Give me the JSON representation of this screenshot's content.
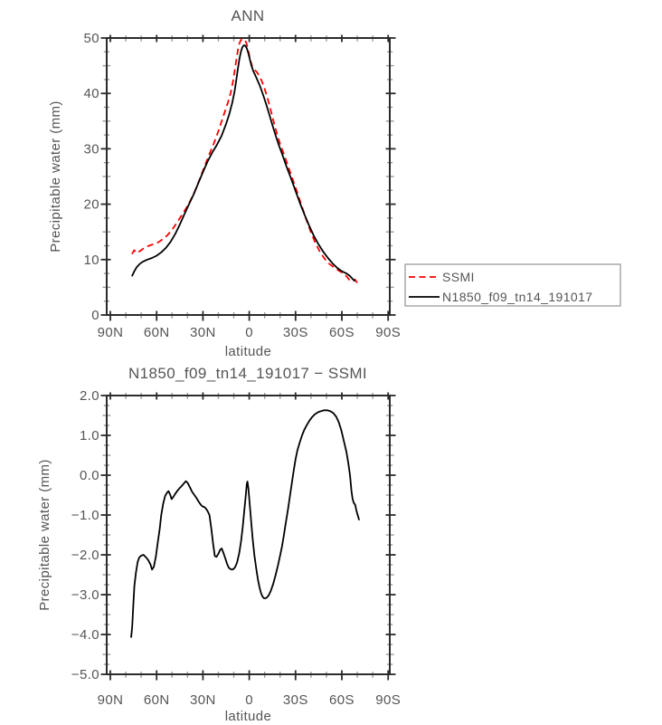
{
  "figure": {
    "background": "#ffffff",
    "text_color": "#555555",
    "axis_color": "#2b2b2b",
    "minor_tick_color": "#9b9b9b"
  },
  "chart_data": [
    {
      "type": "line",
      "title": "ANN",
      "xlabel": "latitude",
      "ylabel": "Precipitable water (mm)",
      "xlim": [
        90,
        -90
      ],
      "ylim": [
        0,
        50
      ],
      "grid": false,
      "x_tick_labels": [
        "90N",
        "60N",
        "30N",
        "0",
        "30S",
        "60S",
        "90S"
      ],
      "x_tick_lats": [
        90,
        60,
        30,
        0,
        -30,
        -60,
        -90
      ],
      "x_minor_step": 10,
      "y_tick_values": [
        0,
        10,
        20,
        30,
        40,
        50
      ],
      "y_tick_labels": [
        "0",
        "10",
        "20",
        "30",
        "40",
        "50"
      ],
      "y_minor_step": 2.5,
      "legend": {
        "position": "outside-right",
        "border_color": "#9b9b9b",
        "entries": [
          {
            "label": "SSMI",
            "color": "#ff0000",
            "dash": true
          },
          {
            "label": "N1850_f09_tn14_191017",
            "color": "#000000",
            "dash": false
          }
        ]
      },
      "series": [
        {
          "name": "SSMI",
          "color": "#ff0000",
          "dash": true,
          "points": [
            [
              76,
              11.0
            ],
            [
              74.5,
              11.7
            ],
            [
              73,
              11.2
            ],
            [
              71,
              11.5
            ],
            [
              68,
              12.1
            ],
            [
              65,
              12.5
            ],
            [
              62,
              12.8
            ],
            [
              59,
              13.1
            ],
            [
              56,
              13.7
            ],
            [
              53,
              14.4
            ],
            [
              50,
              15.4
            ],
            [
              47,
              16.6
            ],
            [
              44,
              17.9
            ],
            [
              41,
              19.2
            ],
            [
              38,
              20.7
            ],
            [
              35,
              22.5
            ],
            [
              32,
              24.6
            ],
            [
              29,
              26.8
            ],
            [
              26,
              28.9
            ],
            [
              23,
              30.9
            ],
            [
              20,
              33.2
            ],
            [
              17,
              35.7
            ],
            [
              14,
              38.2
            ],
            [
              12,
              40.1
            ],
            [
              10.5,
              42.2
            ],
            [
              9.5,
              44.0
            ],
            [
              8.5,
              45.8
            ],
            [
              7.5,
              47.6
            ],
            [
              6.5,
              48.9
            ],
            [
              5.5,
              49.6
            ],
            [
              4.5,
              49.8
            ],
            [
              3,
              49.7
            ],
            [
              2,
              49.2
            ],
            [
              1,
              48.2
            ],
            [
              0,
              46.9
            ],
            [
              -1,
              45.7
            ],
            [
              -2,
              44.8
            ],
            [
              -3,
              44.3
            ],
            [
              -4.5,
              44.0
            ],
            [
              -6,
              43.4
            ],
            [
              -8,
              42.3
            ],
            [
              -10,
              40.8
            ],
            [
              -12,
              39.0
            ],
            [
              -14,
              36.9
            ],
            [
              -16,
              34.7
            ],
            [
              -18,
              32.7
            ],
            [
              -20,
              30.9
            ],
            [
              -22.5,
              29.0
            ],
            [
              -25,
              27.0
            ],
            [
              -28,
              24.6
            ],
            [
              -31,
              22.2
            ],
            [
              -34,
              19.7
            ],
            [
              -37,
              17.2
            ],
            [
              -40,
              14.9
            ],
            [
              -43,
              12.9
            ],
            [
              -46,
              11.3
            ],
            [
              -49,
              10.1
            ],
            [
              -52,
              9.2
            ],
            [
              -55,
              8.6
            ],
            [
              -58,
              8.0
            ],
            [
              -61,
              7.5
            ],
            [
              -63,
              7.0
            ],
            [
              -65,
              6.3
            ],
            [
              -67,
              6.1
            ],
            [
              -68.5,
              6.4
            ],
            [
              -70,
              5.8
            ]
          ]
        },
        {
          "name": "N1850_f09_tn14_191017",
          "color": "#000000",
          "dash": false,
          "points": [
            [
              76,
              7.0
            ],
            [
              74.5,
              7.9
            ],
            [
              73,
              8.6
            ],
            [
              71,
              9.2
            ],
            [
              69,
              9.6
            ],
            [
              66,
              10.0
            ],
            [
              63,
              10.3
            ],
            [
              60,
              10.7
            ],
            [
              57,
              11.3
            ],
            [
              54,
              12.1
            ],
            [
              51,
              13.2
            ],
            [
              48,
              14.6
            ],
            [
              45,
              16.3
            ],
            [
              42,
              18.2
            ],
            [
              39,
              20.0
            ],
            [
              36,
              21.8
            ],
            [
              33,
              23.8
            ],
            [
              30,
              25.8
            ],
            [
              27,
              27.7
            ],
            [
              24,
              29.3
            ],
            [
              21,
              30.7
            ],
            [
              18,
              32.3
            ],
            [
              15,
              34.5
            ],
            [
              13,
              36.2
            ],
            [
              11,
              38.3
            ],
            [
              9.5,
              40.4
            ],
            [
              8.5,
              42.2
            ],
            [
              7.5,
              44.2
            ],
            [
              6.5,
              46.0
            ],
            [
              5.5,
              47.4
            ],
            [
              4.5,
              48.3
            ],
            [
              3.5,
              48.7
            ],
            [
              2.5,
              48.6
            ],
            [
              1.5,
              48.1
            ],
            [
              0.5,
              47.2
            ],
            [
              -0.5,
              46.0
            ],
            [
              -1.5,
              44.9
            ],
            [
              -2.5,
              44.1
            ],
            [
              -3.5,
              43.5
            ],
            [
              -5,
              42.6
            ],
            [
              -7,
              41.3
            ],
            [
              -9,
              39.7
            ],
            [
              -11,
              38.0
            ],
            [
              -13,
              36.2
            ],
            [
              -15,
              34.3
            ],
            [
              -17,
              32.5
            ],
            [
              -19,
              30.8
            ],
            [
              -21.5,
              28.9
            ],
            [
              -24,
              26.9
            ],
            [
              -27,
              24.7
            ],
            [
              -30,
              22.4
            ],
            [
              -33,
              20.1
            ],
            [
              -36,
              18.0
            ],
            [
              -39,
              16.0
            ],
            [
              -42,
              14.2
            ],
            [
              -45,
              12.7
            ],
            [
              -48,
              11.4
            ],
            [
              -51,
              10.3
            ],
            [
              -54,
              9.3
            ],
            [
              -57,
              8.5
            ],
            [
              -60,
              7.9
            ],
            [
              -63,
              7.5
            ],
            [
              -65,
              7.1
            ],
            [
              -67,
              6.5
            ],
            [
              -68.5,
              6.1
            ]
          ]
        }
      ]
    },
    {
      "type": "line",
      "title": "N1850_f09_tn14_191017 − SSMI",
      "xlabel": "latitude",
      "ylabel": "Precipitable water (mm)",
      "xlim": [
        90,
        -90
      ],
      "ylim": [
        -5,
        2
      ],
      "grid": false,
      "x_tick_labels": [
        "90N",
        "60N",
        "30N",
        "0",
        "30S",
        "60S",
        "90S"
      ],
      "x_tick_lats": [
        90,
        60,
        30,
        0,
        -30,
        -60,
        -90
      ],
      "x_minor_step": 10,
      "y_tick_values": [
        -5,
        -4,
        -3,
        -2,
        -1,
        0,
        1,
        2
      ],
      "y_tick_labels": [
        "−5.0",
        "−4.0",
        "−3.0",
        "−2.0",
        "−1.0",
        "0.0",
        "1.0",
        "2.0"
      ],
      "y_minor_step": 0.25,
      "series": [
        {
          "name": "N1850_f09_tn14_191017 - SSMI",
          "color": "#000000",
          "dash": false,
          "points": [
            [
              76.5,
              -4.08
            ],
            [
              75.8,
              -3.8
            ],
            [
              75.2,
              -3.3
            ],
            [
              74.4,
              -2.78
            ],
            [
              73.4,
              -2.45
            ],
            [
              72.3,
              -2.18
            ],
            [
              71.3,
              -2.07
            ],
            [
              70,
              -2.02
            ],
            [
              68.5,
              -2.0
            ],
            [
              67,
              -2.06
            ],
            [
              65.5,
              -2.13
            ],
            [
              64,
              -2.24
            ],
            [
              63,
              -2.37
            ],
            [
              61.8,
              -2.3
            ],
            [
              60.5,
              -2.05
            ],
            [
              59.3,
              -1.7
            ],
            [
              58,
              -1.35
            ],
            [
              57,
              -1.0
            ],
            [
              55.8,
              -0.72
            ],
            [
              54.5,
              -0.52
            ],
            [
              53.3,
              -0.44
            ],
            [
              52.3,
              -0.4
            ],
            [
              51.3,
              -0.48
            ],
            [
              50.3,
              -0.6
            ],
            [
              49.3,
              -0.55
            ],
            [
              48,
              -0.47
            ],
            [
              46.5,
              -0.39
            ],
            [
              45,
              -0.32
            ],
            [
              43.5,
              -0.26
            ],
            [
              42,
              -0.19
            ],
            [
              41,
              -0.15
            ],
            [
              39.8,
              -0.2
            ],
            [
              38.5,
              -0.3
            ],
            [
              37,
              -0.42
            ],
            [
              35.5,
              -0.5
            ],
            [
              34.2,
              -0.57
            ],
            [
              33,
              -0.65
            ],
            [
              32,
              -0.71
            ],
            [
              31,
              -0.76
            ],
            [
              30,
              -0.79
            ],
            [
              29,
              -0.8
            ],
            [
              28,
              -0.84
            ],
            [
              27,
              -0.9
            ],
            [
              25.8,
              -1.0
            ],
            [
              24.6,
              -1.33
            ],
            [
              23.4,
              -1.73
            ],
            [
              22.3,
              -2.03
            ],
            [
              21.2,
              -2.05
            ],
            [
              20,
              -1.97
            ],
            [
              18.8,
              -1.87
            ],
            [
              17.9,
              -1.84
            ],
            [
              16.8,
              -1.94
            ],
            [
              15.6,
              -2.08
            ],
            [
              14.4,
              -2.22
            ],
            [
              13.3,
              -2.32
            ],
            [
              12.2,
              -2.36
            ],
            [
              11,
              -2.37
            ],
            [
              10,
              -2.35
            ],
            [
              9,
              -2.3
            ],
            [
              7.8,
              -2.18
            ],
            [
              6.5,
              -1.96
            ],
            [
              5.3,
              -1.65
            ],
            [
              4.2,
              -1.3
            ],
            [
              3.2,
              -0.9
            ],
            [
              2.3,
              -0.52
            ],
            [
              1.6,
              -0.22
            ],
            [
              1.2,
              -0.16
            ],
            [
              0.6,
              -0.32
            ],
            [
              -0.3,
              -0.72
            ],
            [
              -1.3,
              -1.18
            ],
            [
              -2.3,
              -1.63
            ],
            [
              -3.4,
              -2.03
            ],
            [
              -4.6,
              -2.37
            ],
            [
              -5.6,
              -2.62
            ],
            [
              -6.6,
              -2.81
            ],
            [
              -7.6,
              -2.96
            ],
            [
              -8.6,
              -3.05
            ],
            [
              -9.6,
              -3.09
            ],
            [
              -10.6,
              -3.09
            ],
            [
              -11.5,
              -3.07
            ],
            [
              -12.7,
              -3.01
            ],
            [
              -14,
              -2.9
            ],
            [
              -15.5,
              -2.73
            ],
            [
              -17,
              -2.52
            ],
            [
              -18.5,
              -2.28
            ],
            [
              -20,
              -2.02
            ],
            [
              -21.2,
              -1.79
            ],
            [
              -22.4,
              -1.52
            ],
            [
              -23.7,
              -1.2
            ],
            [
              -25,
              -0.88
            ],
            [
              -26.3,
              -0.54
            ],
            [
              -27.6,
              -0.2
            ],
            [
              -28.8,
              0.12
            ],
            [
              -30,
              0.4
            ],
            [
              -31.2,
              0.62
            ],
            [
              -32.7,
              0.82
            ],
            [
              -34.2,
              1.0
            ],
            [
              -35.7,
              1.14
            ],
            [
              -37.3,
              1.26
            ],
            [
              -39,
              1.37
            ],
            [
              -40.7,
              1.46
            ],
            [
              -42.5,
              1.53
            ],
            [
              -44.5,
              1.58
            ],
            [
              -46.5,
              1.61
            ],
            [
              -48.5,
              1.63
            ],
            [
              -50.5,
              1.63
            ],
            [
              -52.5,
              1.61
            ],
            [
              -54.5,
              1.56
            ],
            [
              -56.3,
              1.47
            ],
            [
              -58,
              1.33
            ],
            [
              -59.7,
              1.12
            ],
            [
              -61.3,
              0.86
            ],
            [
              -63,
              0.58
            ],
            [
              -64.3,
              0.28
            ],
            [
              -65.3,
              0.0
            ],
            [
              -66.2,
              -0.39
            ],
            [
              -67,
              -0.6
            ],
            [
              -67.8,
              -0.7
            ],
            [
              -68.6,
              -0.74
            ],
            [
              -69.4,
              -0.88
            ],
            [
              -70,
              -0.97
            ],
            [
              -70.7,
              -1.06
            ],
            [
              -71.2,
              -1.13
            ]
          ]
        }
      ]
    }
  ]
}
